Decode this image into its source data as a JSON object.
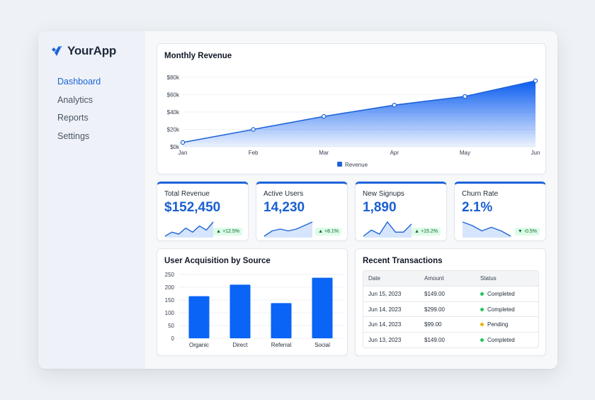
{
  "app": {
    "name": "YourApp"
  },
  "sidebar": {
    "items": [
      {
        "label": "Dashboard",
        "active": true
      },
      {
        "label": "Analytics",
        "active": false
      },
      {
        "label": "Reports",
        "active": false
      },
      {
        "label": "Settings",
        "active": false
      }
    ]
  },
  "colors": {
    "accent": "#1d63d8",
    "positive": "#22c55e",
    "pending": "#eab308",
    "badge_bg": "#dcfce7",
    "badge_text": "#166534"
  },
  "revenue_card": {
    "title": "Monthly Revenue"
  },
  "stats": [
    {
      "label": "Total Revenue",
      "value": "$152,450",
      "change": "+12.5%",
      "direction": "up",
      "trend": [
        1,
        3,
        2,
        5,
        3,
        6,
        4,
        8
      ]
    },
    {
      "label": "Active Users",
      "value": "14,230",
      "change": "+8.1%",
      "direction": "up",
      "trend": [
        1,
        4,
        5,
        4,
        5,
        7,
        9
      ]
    },
    {
      "label": "New Signups",
      "value": "1,890",
      "change": "+15.2%",
      "direction": "up",
      "trend": [
        1,
        4,
        2,
        8,
        3,
        3,
        7
      ]
    },
    {
      "label": "Churn Rate",
      "value": "2.1%",
      "change": "-0.5%",
      "direction": "down",
      "trend": [
        9,
        7,
        4,
        6,
        4,
        1
      ]
    }
  ],
  "acquisition_card": {
    "title": "User Acquisition by Source"
  },
  "transactions": {
    "title": "Recent Transactions",
    "headers": {
      "date": "Date",
      "amount": "Amount",
      "status": "Status"
    },
    "rows": [
      {
        "date": "Jun 15, 2023",
        "amount": "$149.00",
        "status": "Completed",
        "status_color": "#22c55e"
      },
      {
        "date": "Jun 14, 2023",
        "amount": "$299.00",
        "status": "Completed",
        "status_color": "#22c55e"
      },
      {
        "date": "Jun 14, 2023",
        "amount": "$99.00",
        "status": "Pending",
        "status_color": "#eab308"
      },
      {
        "date": "Jun 13, 2023",
        "amount": "$149.00",
        "status": "Completed",
        "status_color": "#22c55e"
      }
    ]
  },
  "chart_data": [
    {
      "type": "area",
      "title": "Monthly Revenue",
      "x": [
        "Jan",
        "Feb",
        "Mar",
        "Apr",
        "May",
        "Jun"
      ],
      "yticks": [
        "$0k",
        "$20k",
        "$40k",
        "$60k",
        "$80k"
      ],
      "ylim": [
        0,
        80000
      ],
      "series": [
        {
          "name": "Revenue",
          "values": [
            5000,
            20000,
            35000,
            48000,
            58000,
            76000
          ],
          "color": "#1d63d8"
        }
      ],
      "legend": "bottom-center",
      "grid": true
    },
    {
      "type": "bar",
      "title": "User Acquisition by Source",
      "categories": [
        "Organic",
        "Direct",
        "Referral",
        "Social"
      ],
      "values": [
        165,
        210,
        138,
        237
      ],
      "yticks": [
        "0",
        "50",
        "100",
        "150",
        "200",
        "250"
      ],
      "ylim": [
        0,
        250
      ],
      "color": "#0a64f5",
      "grid": true
    }
  ]
}
